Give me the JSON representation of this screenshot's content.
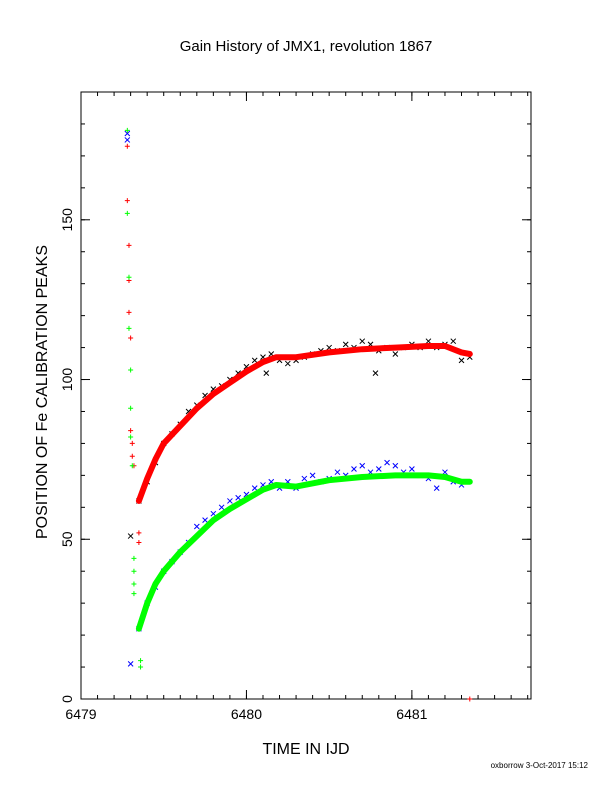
{
  "chart_data": {
    "type": "scatter",
    "title": "Gain History of JMX1, revolution 1867",
    "xlabel": "TIME IN IJD",
    "ylabel": "POSITION OF Fe CALIBRATION PEAKS",
    "xlim": [
      6479.0,
      6481.72
    ],
    "ylim": [
      0,
      190
    ],
    "x_ticks": [
      6479,
      6480,
      6481
    ],
    "x_tick_labels": [
      "6479",
      "6480",
      "6481"
    ],
    "x_minor_step": 0.1,
    "y_ticks": [
      0,
      50,
      100,
      150
    ],
    "y_tick_labels": [
      "0",
      "50",
      "100",
      "150"
    ],
    "y_minor_step": 10,
    "grid": false,
    "footer": "oxborrow  3-Oct-2017 15:12",
    "series": [
      {
        "marker": "x",
        "color": "#000000",
        "points": [
          [
            6479.35,
            62
          ],
          [
            6479.4,
            68
          ],
          [
            6479.45,
            74
          ],
          [
            6479.5,
            80
          ],
          [
            6479.55,
            83
          ],
          [
            6479.6,
            86
          ],
          [
            6479.65,
            90
          ],
          [
            6479.7,
            92
          ],
          [
            6479.75,
            95
          ],
          [
            6479.8,
            97
          ],
          [
            6479.85,
            98
          ],
          [
            6479.9,
            100
          ],
          [
            6479.95,
            102
          ],
          [
            6480.0,
            104
          ],
          [
            6480.05,
            106
          ],
          [
            6480.1,
            107
          ],
          [
            6480.15,
            108
          ],
          [
            6480.2,
            106
          ],
          [
            6480.25,
            105
          ],
          [
            6480.3,
            106
          ],
          [
            6480.35,
            107
          ],
          [
            6480.4,
            108
          ],
          [
            6480.45,
            109
          ],
          [
            6480.5,
            110
          ],
          [
            6480.55,
            109
          ],
          [
            6480.6,
            111
          ],
          [
            6480.65,
            110
          ],
          [
            6480.7,
            112
          ],
          [
            6480.75,
            111
          ],
          [
            6480.8,
            109
          ],
          [
            6480.85,
            110
          ],
          [
            6480.9,
            108
          ],
          [
            6480.95,
            110
          ],
          [
            6481.0,
            111
          ],
          [
            6481.05,
            110
          ],
          [
            6481.1,
            112
          ],
          [
            6481.15,
            110
          ],
          [
            6481.2,
            111
          ],
          [
            6481.25,
            112
          ],
          [
            6481.3,
            106
          ],
          [
            6481.35,
            107
          ],
          [
            6479.3,
            51
          ],
          [
            6480.12,
            102
          ],
          [
            6480.78,
            102
          ]
        ]
      },
      {
        "marker": "line",
        "color": "#ff0000",
        "points": [
          [
            6479.35,
            62
          ],
          [
            6479.4,
            69
          ],
          [
            6479.45,
            75
          ],
          [
            6479.5,
            80
          ],
          [
            6479.6,
            85.5
          ],
          [
            6479.7,
            91
          ],
          [
            6479.8,
            95.5
          ],
          [
            6479.9,
            99
          ],
          [
            6480.0,
            102.5
          ],
          [
            6480.1,
            105.5
          ],
          [
            6480.18,
            107
          ],
          [
            6480.3,
            107
          ],
          [
            6480.5,
            108.5
          ],
          [
            6480.7,
            109.5
          ],
          [
            6480.9,
            110
          ],
          [
            6481.1,
            110.5
          ],
          [
            6481.2,
            110.5
          ],
          [
            6481.3,
            108.5
          ],
          [
            6481.35,
            108
          ]
        ]
      },
      {
        "marker": "+",
        "color": "#ff0000",
        "points": [
          [
            6479.28,
            173
          ],
          [
            6479.28,
            156
          ],
          [
            6479.29,
            142
          ],
          [
            6479.29,
            131
          ],
          [
            6479.29,
            121
          ],
          [
            6479.3,
            113
          ],
          [
            6479.3,
            84
          ],
          [
            6479.31,
            80
          ],
          [
            6479.31,
            76
          ],
          [
            6479.32,
            73
          ],
          [
            6479.35,
            52
          ],
          [
            6479.35,
            49
          ],
          [
            6481.35,
            0
          ]
        ]
      },
      {
        "marker": "x",
        "color": "#0000ff",
        "points": [
          [
            6479.35,
            22
          ],
          [
            6479.4,
            30
          ],
          [
            6479.45,
            35
          ],
          [
            6479.5,
            40
          ],
          [
            6479.55,
            43
          ],
          [
            6479.6,
            46
          ],
          [
            6479.65,
            49
          ],
          [
            6479.7,
            54
          ],
          [
            6479.75,
            56
          ],
          [
            6479.8,
            58
          ],
          [
            6479.85,
            60
          ],
          [
            6479.9,
            62
          ],
          [
            6479.95,
            63
          ],
          [
            6480.0,
            64
          ],
          [
            6480.05,
            66
          ],
          [
            6480.1,
            67
          ],
          [
            6480.15,
            68
          ],
          [
            6480.2,
            66
          ],
          [
            6480.25,
            68
          ],
          [
            6480.3,
            66
          ],
          [
            6480.35,
            69
          ],
          [
            6480.4,
            70
          ],
          [
            6480.45,
            68
          ],
          [
            6480.5,
            69
          ],
          [
            6480.55,
            71
          ],
          [
            6480.6,
            70
          ],
          [
            6480.65,
            72
          ],
          [
            6480.7,
            73
          ],
          [
            6480.75,
            71
          ],
          [
            6480.8,
            72
          ],
          [
            6480.85,
            74
          ],
          [
            6480.9,
            73
          ],
          [
            6480.95,
            71
          ],
          [
            6481.0,
            72
          ],
          [
            6481.05,
            70
          ],
          [
            6481.1,
            69
          ],
          [
            6481.15,
            66
          ],
          [
            6481.2,
            71
          ],
          [
            6481.25,
            68
          ],
          [
            6481.3,
            67
          ],
          [
            6479.28,
            177
          ],
          [
            6479.28,
            175
          ],
          [
            6479.3,
            11
          ]
        ]
      },
      {
        "marker": "line",
        "color": "#00ff00",
        "points": [
          [
            6479.35,
            22
          ],
          [
            6479.4,
            30
          ],
          [
            6479.45,
            36
          ],
          [
            6479.5,
            40
          ],
          [
            6479.6,
            46
          ],
          [
            6479.7,
            51
          ],
          [
            6479.8,
            56
          ],
          [
            6479.9,
            59.5
          ],
          [
            6480.0,
            62.5
          ],
          [
            6480.1,
            65.5
          ],
          [
            6480.18,
            67
          ],
          [
            6480.3,
            66.5
          ],
          [
            6480.5,
            68.5
          ],
          [
            6480.7,
            69.5
          ],
          [
            6480.9,
            70
          ],
          [
            6481.1,
            70
          ],
          [
            6481.2,
            69.5
          ],
          [
            6481.3,
            68
          ],
          [
            6481.35,
            68
          ]
        ]
      },
      {
        "marker": "+",
        "color": "#00ff00",
        "points": [
          [
            6479.28,
            178
          ],
          [
            6479.28,
            152
          ],
          [
            6479.29,
            132
          ],
          [
            6479.29,
            116
          ],
          [
            6479.3,
            103
          ],
          [
            6479.3,
            91
          ],
          [
            6479.3,
            82
          ],
          [
            6479.31,
            73
          ],
          [
            6479.32,
            44
          ],
          [
            6479.32,
            40
          ],
          [
            6479.32,
            36
          ],
          [
            6479.32,
            33
          ],
          [
            6479.36,
            12
          ],
          [
            6479.36,
            10
          ]
        ]
      }
    ]
  }
}
